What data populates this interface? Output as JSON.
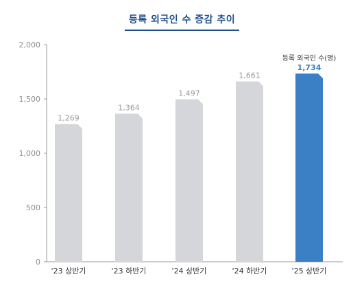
{
  "chart_data": {
    "type": "bar",
    "title": "등록 외국인 수 증감 추이",
    "categories": [
      "'23 상반기",
      "'23 하반기",
      "'24 상반기",
      "'24 하반기",
      "'25 상반기"
    ],
    "values": [
      1269,
      1364,
      1497,
      1661,
      1734
    ],
    "value_labels": [
      "1,269",
      "1,364",
      "1,497",
      "1,661",
      "1,734"
    ],
    "highlight_index": 4,
    "highlight_label": "등록 외국인 수(명)",
    "yticks": [
      0,
      500,
      1000,
      1500,
      2000
    ],
    "ytick_labels": [
      "0",
      "500",
      "1,000",
      "1,500",
      "2,000"
    ],
    "ylim": [
      0,
      2000
    ],
    "grid": false,
    "colors": {
      "bar": "#d4d6d9",
      "highlight": "#3b7fc4",
      "title": "#1f4e8c",
      "axis": "#9a9a9a"
    }
  }
}
